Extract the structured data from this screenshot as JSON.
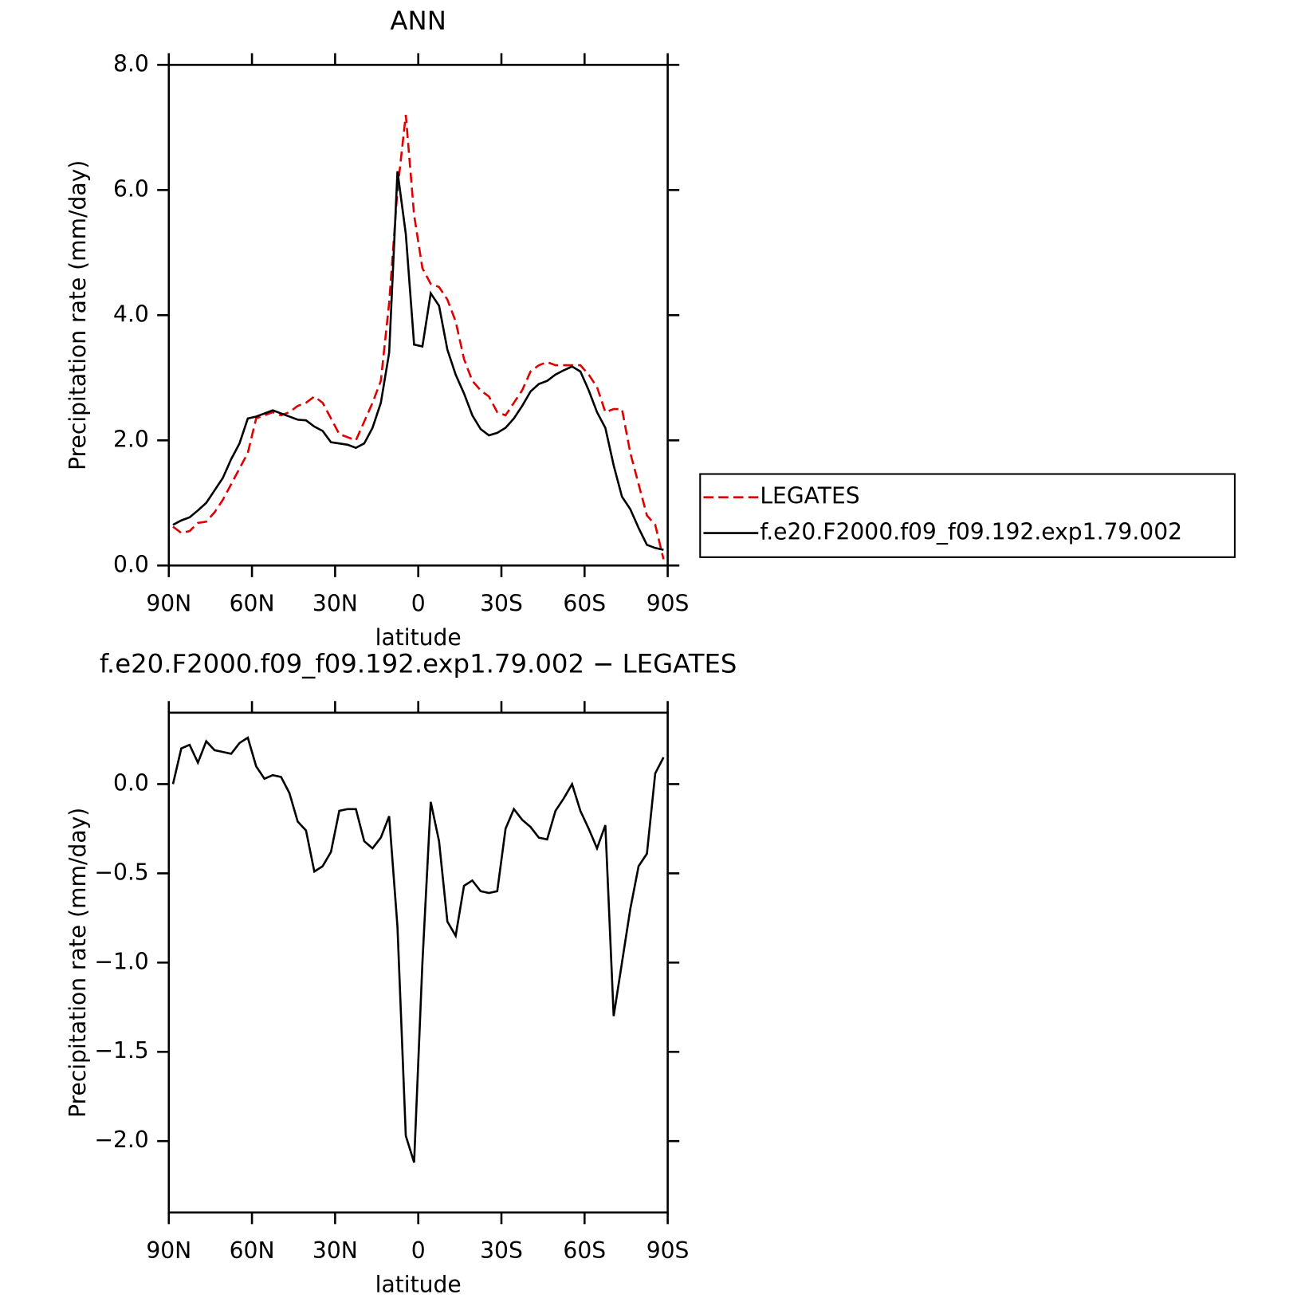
{
  "chart_data": [
    {
      "type": "line",
      "title": "ANN",
      "xlabel": "latitude",
      "ylabel": "Precipitation rate (mm/day)",
      "x": [
        88.5,
        85.5,
        82.5,
        79.5,
        76.5,
        73.5,
        70.5,
        67.5,
        64.5,
        61.5,
        58.5,
        55.5,
        52.5,
        49.5,
        46.5,
        43.5,
        40.5,
        37.5,
        34.5,
        31.5,
        28.5,
        25.5,
        22.5,
        19.5,
        16.5,
        13.5,
        10.5,
        7.5,
        4.5,
        1.5,
        -1.5,
        -4.5,
        -7.5,
        -10.5,
        -13.5,
        -16.5,
        -19.5,
        -22.5,
        -25.5,
        -28.5,
        -31.5,
        -34.5,
        -37.5,
        -40.5,
        -43.5,
        -46.5,
        -49.5,
        -52.5,
        -55.5,
        -58.5,
        -61.5,
        -64.5,
        -67.5,
        -70.5,
        -73.5,
        -76.5,
        -79.5,
        -82.5,
        -85.5,
        -88.5
      ],
      "series": [
        {
          "name": "LEGATES",
          "color": "#e00000",
          "dash": true,
          "values": [
            0.62,
            0.52,
            0.55,
            0.68,
            0.7,
            0.85,
            1.05,
            1.3,
            1.55,
            1.8,
            2.35,
            2.4,
            2.45,
            2.4,
            2.45,
            2.55,
            2.6,
            2.7,
            2.6,
            2.35,
            2.1,
            2.05,
            2.0,
            2.3,
            2.6,
            2.95,
            4.2,
            6.0,
            7.2,
            5.6,
            4.75,
            4.5,
            4.45,
            4.25,
            3.9,
            3.3,
            2.95,
            2.8,
            2.7,
            2.45,
            2.4,
            2.6,
            2.8,
            3.1,
            3.2,
            3.25,
            3.2,
            3.2,
            3.2,
            3.2,
            3.05,
            2.85,
            2.45,
            2.5,
            2.5,
            1.8,
            1.3,
            0.8,
            0.65,
            0.1
          ]
        },
        {
          "name": "f.e20.F2000.f09_f09.192.exp1.79.002",
          "color": "#000000",
          "dash": false,
          "values": [
            0.65,
            0.72,
            0.77,
            0.88,
            1.0,
            1.2,
            1.4,
            1.7,
            1.95,
            2.35,
            2.38,
            2.43,
            2.48,
            2.43,
            2.38,
            2.33,
            2.32,
            2.22,
            2.15,
            1.97,
            1.95,
            1.93,
            1.88,
            1.95,
            2.2,
            2.6,
            3.4,
            6.3,
            5.3,
            3.53,
            3.5,
            4.35,
            4.15,
            3.45,
            3.05,
            2.75,
            2.4,
            2.18,
            2.08,
            2.12,
            2.2,
            2.35,
            2.55,
            2.78,
            2.9,
            2.95,
            3.05,
            3.12,
            3.18,
            3.1,
            2.8,
            2.45,
            2.2,
            1.6,
            1.1,
            0.9,
            0.6,
            0.33,
            0.28,
            0.25
          ]
        }
      ],
      "xlim": [
        90,
        -90
      ],
      "xticks": [
        {
          "value": 90,
          "label": "90N"
        },
        {
          "value": 60,
          "label": "60N"
        },
        {
          "value": 30,
          "label": "30N"
        },
        0,
        {
          "value": -30,
          "label": "30S"
        },
        {
          "value": -60,
          "label": "60S"
        },
        {
          "value": -90,
          "label": "90S"
        }
      ],
      "ylim": [
        0,
        8
      ],
      "yticks": [
        {
          "value": 0,
          "label": "0.0"
        },
        {
          "value": 2,
          "label": "2.0"
        },
        {
          "value": 4,
          "label": "4.0"
        },
        {
          "value": 6,
          "label": "6.0"
        },
        {
          "value": 8,
          "label": "8.0"
        }
      ],
      "legend": "right"
    },
    {
      "type": "line",
      "title": "f.e20.F2000.f09_f09.192.exp1.79.002 − LEGATES",
      "xlabel": "latitude",
      "ylabel": "Precipitation rate (mm/day)",
      "x": [
        88.5,
        85.5,
        82.5,
        79.5,
        76.5,
        73.5,
        70.5,
        67.5,
        64.5,
        61.5,
        58.5,
        55.5,
        52.5,
        49.5,
        46.5,
        43.5,
        40.5,
        37.5,
        34.5,
        31.5,
        28.5,
        25.5,
        22.5,
        19.5,
        16.5,
        13.5,
        10.5,
        7.5,
        4.5,
        1.5,
        -1.5,
        -4.5,
        -7.5,
        -10.5,
        -13.5,
        -16.5,
        -19.5,
        -22.5,
        -25.5,
        -28.5,
        -31.5,
        -34.5,
        -37.5,
        -40.5,
        -43.5,
        -46.5,
        -49.5,
        -52.5,
        -55.5,
        -58.5,
        -61.5,
        -64.5,
        -67.5,
        -70.5,
        -73.5,
        -76.5,
        -79.5,
        -82.5,
        -85.5,
        -88.5
      ],
      "color": "#000000",
      "values": [
        0.0,
        0.2,
        0.22,
        0.12,
        0.24,
        0.19,
        0.18,
        0.17,
        0.23,
        0.26,
        0.1,
        0.03,
        0.05,
        0.04,
        -0.05,
        -0.21,
        -0.26,
        -0.49,
        -0.46,
        -0.38,
        -0.15,
        -0.14,
        -0.14,
        -0.32,
        -0.36,
        -0.3,
        -0.18,
        -0.8,
        -1.97,
        -2.12,
        -1.0,
        -0.1,
        -0.32,
        -0.77,
        -0.85,
        -0.57,
        -0.54,
        -0.6,
        -0.61,
        -0.6,
        -0.25,
        -0.14,
        -0.2,
        -0.24,
        -0.3,
        -0.31,
        -0.15,
        -0.08,
        0.0,
        -0.15,
        -0.25,
        -0.36,
        -0.23,
        -1.3,
        -1.0,
        -0.7,
        -0.46,
        -0.39,
        0.06,
        0.15
      ],
      "xlim": [
        90,
        -90
      ],
      "xticks": [
        {
          "value": 90,
          "label": "90N"
        },
        {
          "value": 60,
          "label": "60N"
        },
        {
          "value": 30,
          "label": "30N"
        },
        0,
        {
          "value": -30,
          "label": "30S"
        },
        {
          "value": -60,
          "label": "60S"
        },
        {
          "value": -90,
          "label": "90S"
        }
      ],
      "ylim": [
        -2.4,
        0.4
      ],
      "yticks": [
        {
          "value": 0,
          "label": "0.0"
        },
        {
          "value": -0.5,
          "label": "−0.5"
        },
        {
          "value": -1,
          "label": "−1.0"
        },
        {
          "value": -1.5,
          "label": "−1.5"
        },
        {
          "value": -2,
          "label": "−2.0"
        }
      ]
    }
  ]
}
